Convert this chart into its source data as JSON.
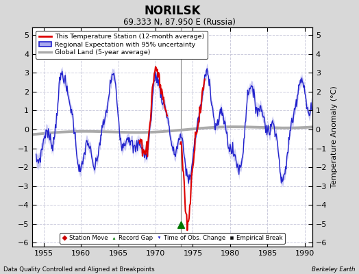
{
  "title": "NORILSK",
  "subtitle": "69.333 N, 87.950 E (Russia)",
  "xlabel_left": "Data Quality Controlled and Aligned at Breakpoints",
  "xlabel_right": "Berkeley Earth",
  "ylabel": "Temperature Anomaly (°C)",
  "year_start": 1953.5,
  "year_end": 1991.0,
  "ylim": [
    -6.2,
    5.4
  ],
  "yticks": [
    -6,
    -5,
    -4,
    -3,
    -2,
    -1,
    0,
    1,
    2,
    3,
    4,
    5
  ],
  "xticks": [
    1955,
    1960,
    1965,
    1970,
    1975,
    1980,
    1985,
    1990
  ],
  "bg_color": "#d8d8d8",
  "plot_bg_color": "#ffffff",
  "grid_color": "#ccccdd",
  "regional_color": "#2222cc",
  "regional_fill_color": "#aaaaee",
  "station_color": "#dd0000",
  "global_color": "#aaaaaa",
  "record_gap_marker_color": "#007700",
  "record_gap_x": 1973.4,
  "record_gap_y": -5.05,
  "vertical_line_x": 1973.4,
  "legend_station": "This Temperature Station (12-month average)",
  "legend_regional": "Regional Expectation with 95% uncertainty",
  "legend_global": "Global Land (5-year average)",
  "marker_legend": [
    "Station Move",
    "Record Gap",
    "Time of Obs. Change",
    "Empirical Break"
  ]
}
